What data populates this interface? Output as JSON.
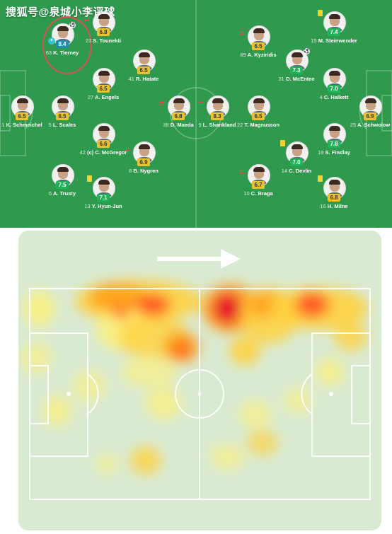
{
  "watermark": "搜狐号@泉城小李评球",
  "colors": {
    "pitch_green": "#2f9a4d",
    "rating_yellow": "#e8c22f",
    "rating_green": "#1fb45a",
    "rating_teal": "#1a8fb0",
    "heat_bg": "#d9ead2"
  },
  "lineup": {
    "home": [
      {
        "num": "63",
        "name": "K. Tierney",
        "rating": "8.4",
        "style": "teal",
        "captain_icon": true,
        "icon": "football-icon"
      },
      {
        "num": "23",
        "name": "S. Tounekti",
        "rating": "6.8",
        "style": "yellow",
        "icon": "sub-icon"
      },
      {
        "num": "41",
        "name": "R. Hatate",
        "rating": "6.5",
        "style": "yellow"
      },
      {
        "num": "27",
        "name": "A. Engels",
        "rating": "6.5",
        "style": "yellow"
      },
      {
        "num": "1",
        "name": "K. Schmeichel",
        "rating": "6.5",
        "style": "yellow"
      },
      {
        "num": "5",
        "name": "L. Scales",
        "rating": "6.5",
        "style": "yellow"
      },
      {
        "num": "42",
        "name": "(c) C. McGregor",
        "rating": "6.6",
        "style": "yellow"
      },
      {
        "num": "8",
        "name": "B. Nygren",
        "rating": "6.9",
        "style": "yellow",
        "icon": "sub-icon"
      },
      {
        "num": "38",
        "name": "D. Maeda",
        "rating": "6.8",
        "style": "yellow",
        "icon": "sub-icon"
      },
      {
        "num": "6",
        "name": "A. Trusty",
        "rating": "7.5",
        "style": "green"
      },
      {
        "num": "13",
        "name": "Y. Hyun-Jun",
        "rating": "7.1",
        "style": "green",
        "icon": "yellow-card-icon"
      }
    ],
    "away": [
      {
        "num": "9",
        "name": "L. Shankland",
        "rating": "8.3",
        "style": "yellow",
        "icon": "sub-icon"
      },
      {
        "num": "89",
        "name": "A. Kyziridis",
        "rating": "6.5",
        "style": "yellow",
        "icon": "sub-icon"
      },
      {
        "num": "31",
        "name": "O. McEntee",
        "rating": "7.3",
        "style": "green",
        "icon": "football-icon"
      },
      {
        "num": "15",
        "name": "M. Steinwender",
        "rating": "7.4",
        "style": "green",
        "icon": "yellow-card-icon"
      },
      {
        "num": "4",
        "name": "C. Halkett",
        "rating": "7.0",
        "style": "green"
      },
      {
        "num": "22",
        "name": "T. Magnusson",
        "rating": "6.5",
        "style": "yellow"
      },
      {
        "num": "25",
        "name": "A. Schwolow",
        "rating": "6.9",
        "style": "yellow"
      },
      {
        "num": "19",
        "name": "S. Findlay",
        "rating": "7.8",
        "style": "green"
      },
      {
        "num": "14",
        "name": "C. Devlin",
        "rating": "7.0",
        "style": "green",
        "icon": "yellow-card-icon"
      },
      {
        "num": "10",
        "name": "C. Braga",
        "rating": "6.7",
        "style": "yellow",
        "icon": "sub-icon"
      },
      {
        "num": "16",
        "name": "H. Milne",
        "rating": "6.8",
        "style": "yellow",
        "icon": "yellow-card-icon"
      }
    ]
  },
  "heatmap": {
    "direction": "left-to-right",
    "intensity_colors": [
      "#fff176",
      "#ffd23f",
      "#ff9f1c",
      "#ff4d1f",
      "#e4002b"
    ]
  }
}
